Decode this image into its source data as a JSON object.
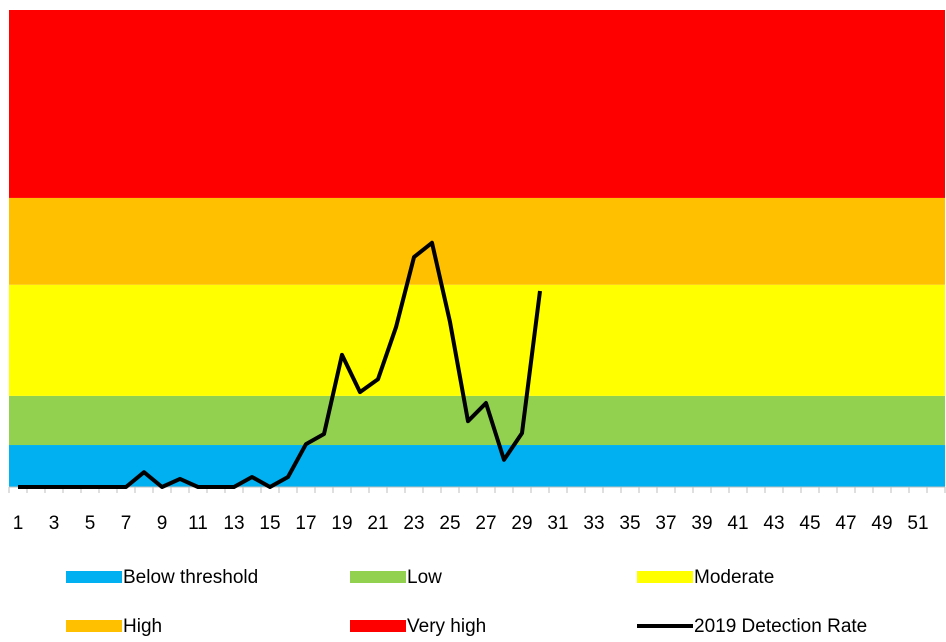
{
  "chart_data": {
    "type": "line",
    "categories": [
      1,
      null,
      3,
      null,
      5,
      null,
      7,
      null,
      9,
      null,
      11,
      null,
      13,
      null,
      15,
      null,
      17,
      null,
      19,
      null,
      21,
      null,
      23,
      null,
      25,
      null,
      27,
      null,
      29,
      null,
      31,
      null,
      33,
      null,
      35,
      null,
      37,
      null,
      39,
      null,
      41,
      null,
      43,
      null,
      45,
      null,
      47,
      null,
      49,
      null,
      51,
      null
    ],
    "ylim": [
      0,
      100
    ],
    "bands": [
      {
        "name": "Below threshold",
        "color": "#00b0f0",
        "value": 8.8
      },
      {
        "name": "Low",
        "color": "#92d050",
        "value": 10.3
      },
      {
        "name": "Moderate",
        "color": "#ffff00",
        "value": 23.3
      },
      {
        "name": "High",
        "color": "#ffc000",
        "value": 18.2
      },
      {
        "name": "Very high",
        "color": "#ff0000",
        "value": 39.4
      }
    ],
    "series": [
      {
        "name": "2019 Detection Rate",
        "color": "#000000",
        "values": [
          0,
          0,
          0,
          0,
          0,
          0,
          0,
          3.1,
          0,
          1.7,
          0,
          0,
          0,
          2.1,
          0,
          2.1,
          9.0,
          11.1,
          27.7,
          19.9,
          22.6,
          33.5,
          48.2,
          51.2,
          34.6,
          13.8,
          17.6,
          5.7,
          11.3,
          41.1,
          null,
          null,
          null,
          null,
          null,
          null,
          null,
          null,
          null,
          null,
          null,
          null,
          null,
          null,
          null,
          null,
          null,
          null,
          null,
          null,
          null,
          null
        ]
      }
    ]
  }
}
